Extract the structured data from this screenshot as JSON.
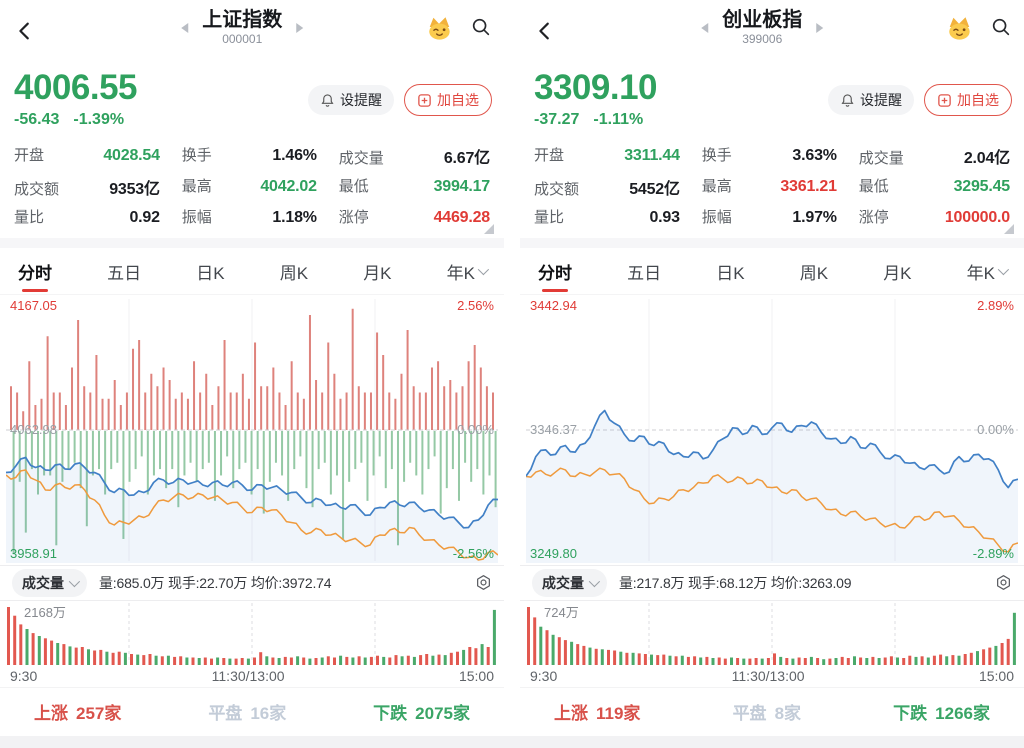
{
  "ui_colors": {
    "green": "#2fa15e",
    "red": "#e03b36",
    "dark": "#1b1d22",
    "tab_underline": "#e23b36",
    "flat_gray": "#c3ccd8"
  },
  "icons": {
    "back": "chevron-left",
    "prev_stock": "triangle-left",
    "next_stock": "triangle-right",
    "mascot": "crown-wink-face",
    "search": "magnifier",
    "alert": "bell",
    "add": "plus-box",
    "dropdown": "chevron-down",
    "settings": "hex-gear",
    "expand": "corner-triangle"
  },
  "panels": [
    {
      "header": {
        "title": "上证指数",
        "code": "000001"
      },
      "price": {
        "last": "4006.55",
        "change": "-56.43",
        "change_pct": "-1.39%",
        "color": "green"
      },
      "actions": {
        "alert": "设提醒",
        "watch": "加自选"
      },
      "stats": [
        {
          "label": "开盘",
          "value": "4028.54",
          "color": "green"
        },
        {
          "label": "换手",
          "value": "1.46%",
          "color": "dark"
        },
        {
          "label": "成交量",
          "value": "6.67亿",
          "color": "dark"
        },
        {
          "label": "成交额",
          "value": "9353亿",
          "color": "dark"
        },
        {
          "label": "最高",
          "value": "4042.02",
          "color": "green"
        },
        {
          "label": "最低",
          "value": "3994.17",
          "color": "green"
        },
        {
          "label": "量比",
          "value": "0.92",
          "color": "dark"
        },
        {
          "label": "振幅",
          "value": "1.18%",
          "color": "dark"
        },
        {
          "label": "涨停",
          "value": "4469.28",
          "color": "red"
        }
      ],
      "tabs": [
        {
          "label": "分时",
          "active": true
        },
        {
          "label": "五日"
        },
        {
          "label": "日K"
        },
        {
          "label": "周K"
        },
        {
          "label": "月K"
        },
        {
          "label": "年K",
          "has_dropdown": true
        }
      ],
      "volume_panel": {
        "selector_label": "成交量",
        "stats_text": "量:685.0万 现手:22.70万 均价:3972.74"
      },
      "breadth": {
        "up_label": "上涨",
        "up": "257家",
        "flat_label": "平盘",
        "flat": "16家",
        "down_label": "下跌",
        "down": "2075家"
      }
    },
    {
      "header": {
        "title": "创业板指",
        "code": "399006"
      },
      "price": {
        "last": "3309.10",
        "change": "-37.27",
        "change_pct": "-1.11%",
        "color": "green"
      },
      "actions": {
        "alert": "设提醒",
        "watch": "加自选"
      },
      "stats": [
        {
          "label": "开盘",
          "value": "3311.44",
          "color": "green"
        },
        {
          "label": "换手",
          "value": "3.63%",
          "color": "dark"
        },
        {
          "label": "成交量",
          "value": "2.04亿",
          "color": "dark"
        },
        {
          "label": "成交额",
          "value": "5452亿",
          "color": "dark"
        },
        {
          "label": "最高",
          "value": "3361.21",
          "color": "red"
        },
        {
          "label": "最低",
          "value": "3295.45",
          "color": "green"
        },
        {
          "label": "量比",
          "value": "0.93",
          "color": "dark"
        },
        {
          "label": "振幅",
          "value": "1.97%",
          "color": "dark"
        },
        {
          "label": "涨停",
          "value": "100000.0",
          "color": "red"
        }
      ],
      "tabs": [
        {
          "label": "分时",
          "active": true
        },
        {
          "label": "五日"
        },
        {
          "label": "日K"
        },
        {
          "label": "周K"
        },
        {
          "label": "月K"
        },
        {
          "label": "年K",
          "has_dropdown": true
        }
      ],
      "volume_panel": {
        "selector_label": "成交量",
        "stats_text": "量:217.8万 现手:68.12万 均价:3263.09"
      },
      "breadth": {
        "up_label": "上涨",
        "up": "119家",
        "flat_label": "平盘",
        "flat": "8家",
        "down_label": "下跌",
        "down": "1266家"
      }
    }
  ],
  "chart_data": [
    {
      "type": "line",
      "title": "上证指数 分时",
      "prev_close": 4062.98,
      "range_pct": 2.56,
      "y_labels": {
        "top": "4167.05",
        "mid": "4062.98",
        "bottom": "3958.91"
      },
      "pct_labels": {
        "top": "2.56%",
        "mid": "0.00%",
        "bottom": "-2.56%"
      },
      "x_axis": [
        "9:30",
        "11:30/13:00",
        "15:00"
      ],
      "colors": {
        "price": "#4180c6",
        "avg": "#ef9a3d",
        "up_bar": "#de827c",
        "down_bar": "#95c9a5",
        "vol_up": "#e2584f",
        "vol_down": "#4aa96a",
        "fill": "rgba(65,128,198,0.08)"
      },
      "price_pct": [
        -0.85,
        -0.72,
        -0.55,
        -0.75,
        -0.8,
        -0.7,
        -0.78,
        -0.68,
        -0.75,
        -0.85,
        -1.05,
        -1.25,
        -1.2,
        -1.3,
        -1.25,
        -1.05,
        -1.0,
        -1.05,
        -1.0,
        -1.05,
        -1.1,
        -1.05,
        -1.1,
        -1.05,
        -1.1,
        -1.2,
        -1.1,
        -1.15,
        -1.2,
        -1.25,
        -1.35,
        -1.45,
        -1.4,
        -1.5,
        -1.55,
        -1.5,
        -1.6,
        -1.7,
        -1.55,
        -1.45,
        -1.5,
        -1.45,
        -1.55,
        -1.6,
        -1.7,
        -1.75,
        -1.85,
        -1.95,
        -1.8,
        -1.5,
        -1.39
      ],
      "avg_pct": [
        -0.9,
        -0.95,
        -0.8,
        -1.0,
        -1.2,
        -1.1,
        -1.15,
        -1.1,
        -1.2,
        -1.4,
        -1.7,
        -1.9,
        -1.85,
        -1.8,
        -1.75,
        -1.55,
        -1.4,
        -1.35,
        -1.3,
        -1.35,
        -1.3,
        -1.35,
        -1.4,
        -1.45,
        -1.55,
        -1.65,
        -1.55,
        -1.6,
        -1.7,
        -1.85,
        -2.0,
        -2.05,
        -2.0,
        -2.1,
        -2.15,
        -2.2,
        -2.25,
        -2.3,
        -2.1,
        -2.0,
        -2.05,
        -1.95,
        -2.1,
        -2.2,
        -2.3,
        -2.35,
        -2.45,
        -2.55,
        -2.6,
        -2.45,
        -2.5
      ],
      "updown_up": [
        0.35,
        0.3,
        0.15,
        0.55,
        0.2,
        0.25,
        0.75,
        0.3,
        0.3,
        0.2,
        0.5,
        0.88,
        0.35,
        0.3,
        0.6,
        0.25,
        0.25,
        0.4,
        0.2,
        0.3,
        0.65,
        0.72,
        0.3,
        0.45,
        0.35,
        0.5,
        0.4,
        0.25,
        0.3,
        0.25,
        0.55,
        0.3,
        0.45,
        0.2,
        0.35,
        0.72,
        0.3,
        0.3,
        0.45,
        0.25,
        0.7,
        0.35,
        0.35,
        0.5,
        0.3,
        0.2,
        0.55,
        0.3,
        0.25,
        0.92,
        0.4,
        0.3,
        0.7,
        0.45,
        0.25,
        0.3,
        0.97,
        0.35,
        0.3,
        0.3,
        0.78,
        0.6,
        0.3,
        0.25,
        0.45,
        0.8,
        0.35,
        0.3,
        0.3,
        0.5,
        0.55,
        0.35,
        0.4,
        0.3,
        0.35,
        0.55,
        0.68,
        0.5,
        0.35,
        0.3
      ],
      "updown_down": [
        0.97,
        0.4,
        0.8,
        0.3,
        0.5,
        0.35,
        0.35,
        0.9,
        0.4,
        0.3,
        0.25,
        0.45,
        0.75,
        0.35,
        0.3,
        0.5,
        0.3,
        0.25,
        0.85,
        0.4,
        0.3,
        0.2,
        0.5,
        0.35,
        0.3,
        0.45,
        0.3,
        0.6,
        0.35,
        0.25,
        0.4,
        0.3,
        0.25,
        0.55,
        0.35,
        0.2,
        0.45,
        0.3,
        0.25,
        0.5,
        0.3,
        0.65,
        0.4,
        0.25,
        0.35,
        0.55,
        0.3,
        0.2,
        0.45,
        0.6,
        0.3,
        0.25,
        0.5,
        0.35,
        0.85,
        0.4,
        0.3,
        0.25,
        0.55,
        0.35,
        0.2,
        0.45,
        0.3,
        0.9,
        0.4,
        0.25,
        0.35,
        0.5,
        0.3,
        0.2,
        0.65,
        0.45,
        0.3,
        0.55,
        0.25,
        0.4,
        0.3,
        0.5,
        0.35,
        0.6
      ],
      "volume_max_label": "2168万",
      "volume_bars": [
        1.0,
        0.85,
        0.7,
        -0.62,
        0.55,
        -0.5,
        0.46,
        0.42,
        -0.38,
        0.36,
        -0.32,
        0.3,
        0.31,
        -0.27,
        0.25,
        0.26,
        -0.23,
        0.21,
        0.23,
        -0.21,
        0.19,
        -0.18,
        0.17,
        0.19,
        -0.16,
        0.15,
        -0.16,
        0.14,
        0.15,
        -0.13,
        0.13,
        -0.12,
        0.13,
        0.11,
        -0.13,
        0.12,
        -0.11,
        0.11,
        0.12,
        -0.11,
        0.13,
        0.22,
        -0.15,
        0.13,
        -0.12,
        0.14,
        0.13,
        -0.15,
        0.13,
        -0.11,
        0.12,
        -0.13,
        0.15,
        0.13,
        -0.16,
        0.14,
        -0.13,
        0.15,
        -0.13,
        0.14,
        0.16,
        -0.14,
        0.13,
        0.17,
        -0.15,
        0.16,
        -0.14,
        0.17,
        0.19,
        -0.16,
        0.18,
        -0.17,
        0.21,
        0.23,
        -0.26,
        0.31,
        0.29,
        -0.36,
        0.31,
        -0.95
      ]
    },
    {
      "type": "line",
      "title": "创业板指 分时",
      "prev_close": 3346.37,
      "range_pct": 2.89,
      "y_labels": {
        "top": "3442.94",
        "mid": "3346.37",
        "bottom": "3249.80"
      },
      "pct_labels": {
        "top": "2.89%",
        "mid": "0.00%",
        "bottom": "-2.89%"
      },
      "x_axis": [
        "9:30",
        "11:30/13:00",
        "15:00"
      ],
      "colors": {
        "price": "#4180c6",
        "avg": "#ef9a3d",
        "up_bar": "#de827c",
        "down_bar": "#95c9a5",
        "vol_up": "#e2584f",
        "vol_down": "#4aa96a",
        "fill": "rgba(65,128,198,0.08)"
      },
      "price_pct": [
        -1.04,
        -0.6,
        -0.45,
        -0.55,
        -0.35,
        -0.5,
        -0.3,
        0.1,
        0.44,
        0.15,
        -0.1,
        -0.25,
        -0.15,
        -0.35,
        -0.3,
        -0.55,
        -0.6,
        -0.5,
        -0.65,
        -0.45,
        -0.2,
        0.05,
        -0.1,
        0.1,
        -0.1,
        0.05,
        0.15,
        -0.05,
        0.1,
        0.18,
        -0.05,
        -0.2,
        -0.3,
        -0.15,
        -0.4,
        -0.3,
        -0.5,
        -0.65,
        -0.6,
        -0.75,
        -0.85,
        -0.8,
        -0.9,
        -0.95,
        -0.6,
        -0.7,
        -0.55,
        -0.65,
        -0.9,
        -1.3,
        -1.11
      ],
      "avg_pct": [
        -1.05,
        -0.95,
        -1.0,
        -0.95,
        -0.9,
        -1.05,
        -1.0,
        -0.95,
        -0.9,
        -1.0,
        -1.1,
        -1.35,
        -1.55,
        -1.65,
        -1.55,
        -1.5,
        -1.35,
        -1.3,
        -1.2,
        -1.05,
        -1.1,
        -1.15,
        -1.1,
        -1.2,
        -1.15,
        -1.3,
        -1.4,
        -1.35,
        -1.5,
        -1.55,
        -1.65,
        -1.8,
        -1.9,
        -1.85,
        -1.95,
        -2.0,
        -2.1,
        -2.15,
        -2.2,
        -2.1,
        -1.95,
        -2.0,
        -1.85,
        -1.95,
        -2.05,
        -2.2,
        -2.3,
        -2.45,
        -2.6,
        -2.75,
        -2.55
      ],
      "updown_up": [],
      "updown_down": [],
      "volume_max_label": "724万",
      "volume_bars": [
        1.0,
        0.82,
        -0.66,
        0.6,
        -0.52,
        0.48,
        0.43,
        -0.4,
        0.36,
        0.33,
        -0.3,
        0.28,
        -0.27,
        0.26,
        0.25,
        -0.23,
        0.21,
        -0.21,
        0.2,
        0.19,
        -0.18,
        0.17,
        0.18,
        -0.16,
        0.15,
        -0.16,
        0.14,
        0.15,
        -0.13,
        0.14,
        -0.12,
        0.13,
        0.11,
        -0.13,
        0.12,
        -0.11,
        0.11,
        0.12,
        -0.11,
        0.12,
        0.2,
        -0.14,
        0.12,
        -0.11,
        0.13,
        0.12,
        -0.14,
        0.12,
        -0.1,
        0.11,
        -0.12,
        0.14,
        0.12,
        -0.15,
        0.13,
        -0.12,
        0.14,
        -0.12,
        0.13,
        0.15,
        -0.13,
        0.12,
        0.16,
        -0.14,
        0.15,
        -0.13,
        0.16,
        0.18,
        -0.15,
        0.17,
        -0.16,
        0.19,
        0.21,
        -0.24,
        0.27,
        0.3,
        -0.33,
        0.38,
        0.45,
        -0.9
      ]
    }
  ]
}
